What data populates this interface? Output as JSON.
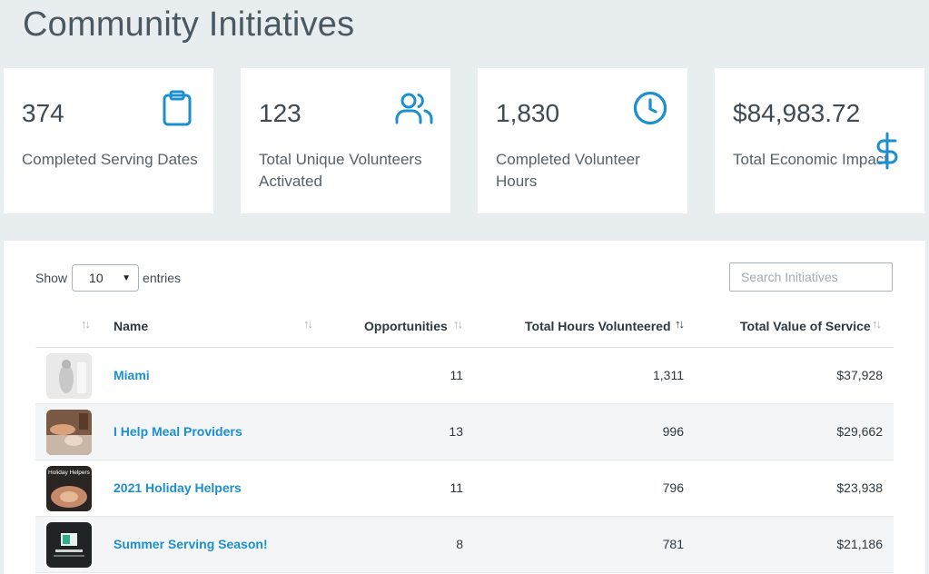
{
  "page": {
    "title": "Community Initiatives"
  },
  "stats": [
    {
      "value": "374",
      "label": "Completed Serving Dates",
      "icon": "clipboard-icon"
    },
    {
      "value": "123",
      "label": "Total Unique Volunteers Activated",
      "icon": "users-icon"
    },
    {
      "value": "1,830",
      "label": "Completed Volunteer Hours",
      "icon": "clock-icon"
    },
    {
      "value": "$84,983.72",
      "label": "Total Economic Impact",
      "icon": "dollar-icon"
    }
  ],
  "colors": {
    "accent": "#1c8fce",
    "background": "#e8edf0"
  },
  "table": {
    "show_label": "Show",
    "entries_label": "entries",
    "page_size": "10",
    "search_placeholder": "Search Initiatives",
    "columns": [
      "Name",
      "Opportunities",
      "Total Hours Volunteered",
      "Total Value of Service"
    ],
    "rows": [
      {
        "name": "Miami",
        "opportunities": "11",
        "hours": "1,311",
        "value": "$37,928"
      },
      {
        "name": "I Help Meal Providers",
        "opportunities": "13",
        "hours": "996",
        "value": "$29,662"
      },
      {
        "name": "2021 Holiday Helpers",
        "opportunities": "11",
        "hours": "796",
        "value": "$23,938"
      },
      {
        "name": "Summer Serving Season!",
        "opportunities": "8",
        "hours": "781",
        "value": "$21,186"
      }
    ],
    "thumb_captions": [
      "Holiday Helpers"
    ]
  }
}
